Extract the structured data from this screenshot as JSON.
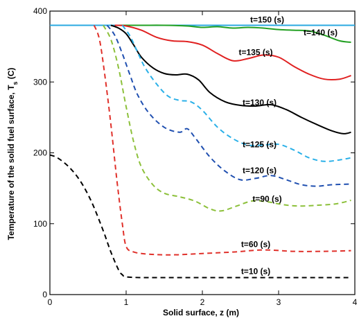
{
  "chart_data": {
    "type": "line",
    "xlabel": "Solid surface, z (m)",
    "ylabel_main": "Temperature of the solid fuel surface, T",
    "ylabel_sub": "s",
    "ylabel_unit": " (C)",
    "xlim": [
      0,
      4
    ],
    "ylim": [
      0,
      400
    ],
    "xticks": [
      0,
      1,
      2,
      3,
      4
    ],
    "yticks": [
      0,
      100,
      200,
      300,
      400
    ],
    "grid": false,
    "series": [
      {
        "name": "t=150 (s)",
        "color": "#2aa8e0",
        "dash": "solid",
        "label_at": [
          2.85,
          384
        ],
        "x": [
          0.0,
          0.5,
          1.0,
          1.5,
          2.0,
          2.5,
          3.0,
          3.5,
          4.0
        ],
        "y": [
          380,
          380,
          380,
          380,
          380,
          380,
          380,
          380,
          380
        ]
      },
      {
        "name": "t=140 (s)",
        "color": "#22a022",
        "dash": "solid",
        "label_at": [
          3.55,
          366
        ],
        "x": [
          0.9,
          1.2,
          1.5,
          1.8,
          2.0,
          2.2,
          2.4,
          2.6,
          2.8,
          3.0,
          3.2,
          3.4,
          3.6,
          3.8,
          3.95
        ],
        "y": [
          380,
          380,
          380,
          379,
          377,
          378,
          376,
          377,
          376,
          374,
          373,
          372,
          366,
          358,
          356
        ]
      },
      {
        "name": "t=135 (s)",
        "color": "#e02020",
        "dash": "solid",
        "label_at": [
          2.7,
          338
        ],
        "x": [
          0.85,
          1.0,
          1.2,
          1.4,
          1.6,
          1.8,
          2.0,
          2.2,
          2.4,
          2.6,
          2.8,
          3.0,
          3.2,
          3.4,
          3.6,
          3.8,
          3.95
        ],
        "y": [
          380,
          379,
          373,
          363,
          358,
          357,
          352,
          340,
          330,
          333,
          338,
          335,
          322,
          311,
          304,
          304,
          309
        ]
      },
      {
        "name": "t=130 (s)",
        "color": "#000000",
        "dash": "solid",
        "label_at": [
          2.75,
          267
        ],
        "x": [
          0.8,
          0.9,
          1.0,
          1.1,
          1.2,
          1.35,
          1.5,
          1.65,
          1.8,
          1.95,
          2.1,
          2.3,
          2.5,
          2.7,
          2.9,
          3.1,
          3.3,
          3.5,
          3.7,
          3.85,
          3.95
        ],
        "y": [
          380,
          376,
          368,
          352,
          335,
          320,
          312,
          310,
          311,
          303,
          285,
          272,
          267,
          266,
          268,
          261,
          250,
          240,
          231,
          227,
          229
        ]
      },
      {
        "name": "t=125 (s)",
        "color": "#2ab0e8",
        "dash": "dash",
        "label_at": [
          2.75,
          208
        ],
        "x": [
          0.95,
          1.05,
          1.15,
          1.25,
          1.4,
          1.55,
          1.7,
          1.85,
          2.0,
          2.2,
          2.4,
          2.6,
          2.8,
          3.0,
          3.2,
          3.4,
          3.6,
          3.8,
          3.95
        ],
        "y": [
          380,
          365,
          342,
          320,
          297,
          280,
          274,
          272,
          260,
          236,
          220,
          211,
          211,
          212,
          204,
          193,
          188,
          190,
          193
        ]
      },
      {
        "name": "t=120 (s)",
        "color": "#1f4fb0",
        "dash": "dash",
        "label_at": [
          2.75,
          171
        ],
        "x": [
          0.75,
          0.85,
          0.95,
          1.05,
          1.15,
          1.3,
          1.5,
          1.7,
          1.8,
          1.9,
          2.1,
          2.3,
          2.5,
          2.7,
          2.9,
          3.1,
          3.3,
          3.5,
          3.7,
          3.95
        ],
        "y": [
          380,
          366,
          340,
          310,
          282,
          256,
          236,
          229,
          234,
          222,
          194,
          174,
          162,
          164,
          168,
          162,
          155,
          153,
          155,
          156
        ]
      },
      {
        "name": "t=90 (s)",
        "color": "#8cc03a",
        "dash": "dash",
        "label_at": [
          2.85,
          131
        ],
        "x": [
          0.7,
          0.8,
          0.9,
          1.0,
          1.1,
          1.2,
          1.35,
          1.5,
          1.7,
          1.9,
          2.1,
          2.25,
          2.45,
          2.65,
          2.85,
          3.05,
          3.25,
          3.5,
          3.75,
          3.95
        ],
        "y": [
          380,
          360,
          320,
          265,
          215,
          180,
          155,
          143,
          138,
          132,
          121,
          118,
          125,
          132,
          131,
          127,
          125,
          126,
          128,
          133
        ]
      },
      {
        "name": "t=60 (s)",
        "color": "#e0302a",
        "dash": "dash",
        "label_at": [
          2.7,
          67
        ],
        "x": [
          0.58,
          0.65,
          0.72,
          0.8,
          0.88,
          0.95,
          1.0,
          1.1,
          1.3,
          1.6,
          2.0,
          2.4,
          2.8,
          3.2,
          3.6,
          3.95
        ],
        "y": [
          380,
          360,
          310,
          240,
          160,
          100,
          68,
          60,
          57,
          56,
          58,
          60,
          63,
          61,
          61,
          62
        ]
      },
      {
        "name": "t=10 (s)",
        "color": "#000000",
        "dash": "dash",
        "label_at": [
          2.7,
          29
        ],
        "x": [
          0.0,
          0.1,
          0.25,
          0.4,
          0.55,
          0.7,
          0.8,
          0.9,
          0.95,
          1.0,
          1.2,
          1.6,
          2.0,
          2.5,
          3.0,
          3.5,
          3.95
        ],
        "y": [
          197,
          193,
          180,
          160,
          130,
          90,
          60,
          35,
          28,
          25,
          24,
          24,
          24,
          24,
          24,
          24,
          24
        ]
      }
    ]
  }
}
